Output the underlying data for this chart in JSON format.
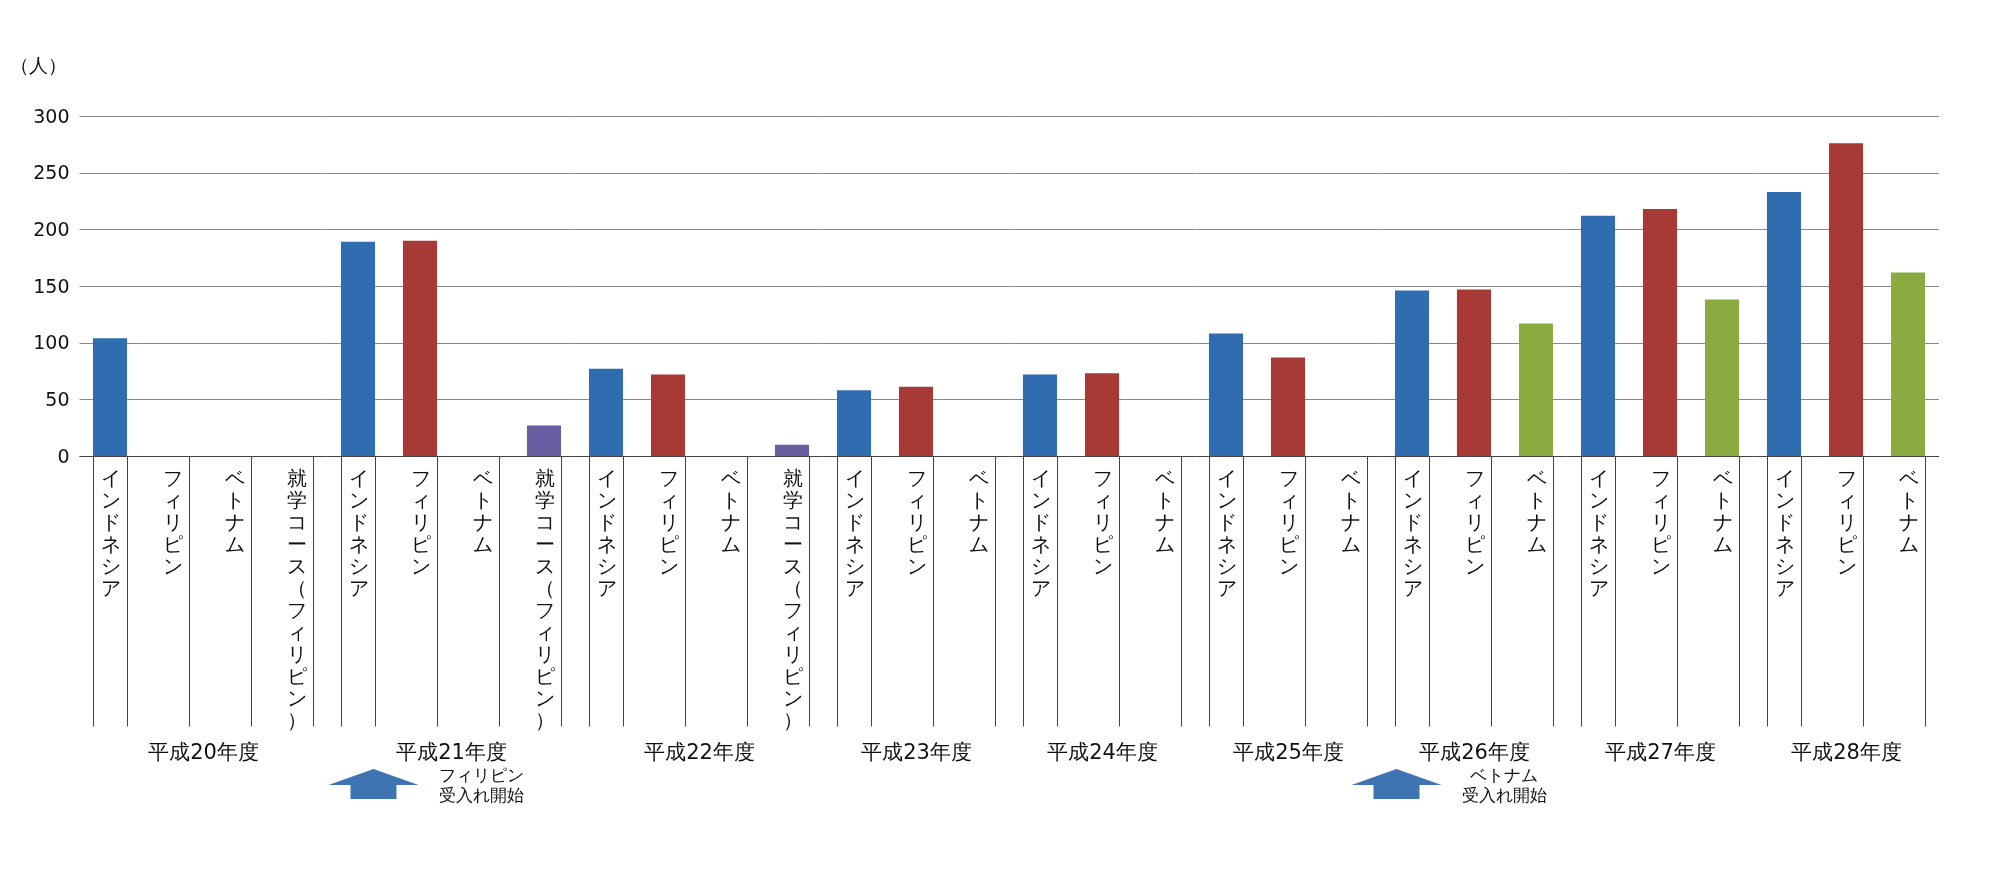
{
  "chart_data": [
    {
      "type": "bar",
      "categories": [
        "インドネシア",
        "フィリピン",
        "ベトナム",
        "就学コース（フィリピン）"
      ],
      "values": [
        104,
        0,
        0,
        0
      ],
      "colors": [
        "#2f6db0",
        "#a83a36",
        "#8aab3f",
        "#6a5ea3"
      ],
      "ylim": [
        0,
        300
      ],
      "yticks": [
        0,
        50,
        100,
        150,
        200,
        250,
        300
      ],
      "grid": "y",
      "ylabel": "（人）",
      "xlabel": "平成20年度"
    },
    {
      "type": "bar",
      "categories": [
        "インドネシア",
        "フィリピン",
        "ベトナム",
        "就学コース（フィリピン）"
      ],
      "values": [
        189,
        190,
        0,
        27
      ],
      "colors": [
        "#2f6db0",
        "#a83a36",
        "#8aab3f",
        "#6a5ea3"
      ],
      "ylim": [
        0,
        300
      ],
      "yticks": [
        0,
        50,
        100,
        150,
        200,
        250,
        300
      ],
      "grid": "y",
      "tick_labels": "x",
      "xlabel": "平成21年度",
      "annotations": [
        "フィリピン",
        "受入れ開始"
      ]
    },
    {
      "type": "bar",
      "categories": [
        "インドネシア",
        "フィリピン",
        "ベトナム",
        "就学コース（フィリピン）"
      ],
      "values": [
        77,
        72,
        0,
        10
      ],
      "colors": [
        "#2f6db0",
        "#a83a36",
        "#8aab3f",
        "#6a5ea3"
      ],
      "ylim": [
        0,
        300
      ],
      "yticks": [
        0,
        50,
        100,
        150,
        200,
        250,
        300
      ],
      "grid": "y",
      "tick_labels": "x",
      "xlabel": "平成22年度"
    },
    {
      "type": "bar",
      "categories": [
        "インドネシア",
        "フィリピン",
        "ベトナム"
      ],
      "values": [
        58,
        61,
        0
      ],
      "colors": [
        "#2f6db0",
        "#a83a36",
        "#8aab3f"
      ],
      "ylim": [
        0,
        300
      ],
      "yticks": [
        0,
        50,
        100,
        150,
        200,
        250,
        300
      ],
      "grid": "y",
      "tick_labels": "x",
      "xlabel": "平成23年度"
    },
    {
      "type": "bar",
      "categories": [
        "インドネシア",
        "フィリピン",
        "ベトナム"
      ],
      "values": [
        72,
        73,
        0
      ],
      "colors": [
        "#2f6db0",
        "#a83a36",
        "#8aab3f"
      ],
      "ylim": [
        0,
        300
      ],
      "yticks": [
        0,
        50,
        100,
        150,
        200,
        250,
        300
      ],
      "grid": "y",
      "tick_labels": "x",
      "xlabel": "平成24年度"
    },
    {
      "type": "bar",
      "categories": [
        "インドネシア",
        "フィリピン",
        "ベトナム"
      ],
      "values": [
        108,
        87,
        0
      ],
      "colors": [
        "#2f6db0",
        "#a83a36",
        "#8aab3f"
      ],
      "ylim": [
        0,
        300
      ],
      "yticks": [
        0,
        50,
        100,
        150,
        200,
        250,
        300
      ],
      "grid": "y",
      "tick_labels": "x",
      "xlabel": "平成25年度"
    },
    {
      "type": "bar",
      "categories": [
        "インドネシア",
        "フィリピン",
        "ベトナム"
      ],
      "values": [
        146,
        147,
        117
      ],
      "colors": [
        "#2f6db0",
        "#a83a36",
        "#8aab3f"
      ],
      "ylim": [
        0,
        300
      ],
      "yticks": [
        0,
        50,
        100,
        150,
        200,
        250,
        300
      ],
      "grid": "y",
      "tick_labels": "x",
      "xlabel": "平成26年度",
      "annotations": [
        "ベトナム",
        "受入れ開始"
      ]
    },
    {
      "type": "bar",
      "categories": [
        "インドネシア",
        "フィリピン",
        "ベトナム"
      ],
      "values": [
        212,
        218,
        138
      ],
      "colors": [
        "#2f6db0",
        "#a83a36",
        "#8aab3f"
      ],
      "ylim": [
        0,
        300
      ],
      "yticks": [
        0,
        50,
        100,
        150,
        200,
        250,
        300
      ],
      "grid": "y",
      "tick_labels": "x",
      "xlabel": "平成27年度"
    },
    {
      "type": "bar",
      "categories": [
        "インドネシア",
        "フィリピン",
        "ベトナム"
      ],
      "values": [
        233,
        276,
        162
      ],
      "colors": [
        "#2f6db0",
        "#a83a36",
        "#8aab3f"
      ],
      "ylim": [
        0,
        300
      ],
      "yticks": [
        0,
        50,
        100,
        150,
        200,
        250,
        300
      ],
      "grid": "y",
      "tick_labels": "x",
      "xlabel": "平成28年度"
    }
  ]
}
